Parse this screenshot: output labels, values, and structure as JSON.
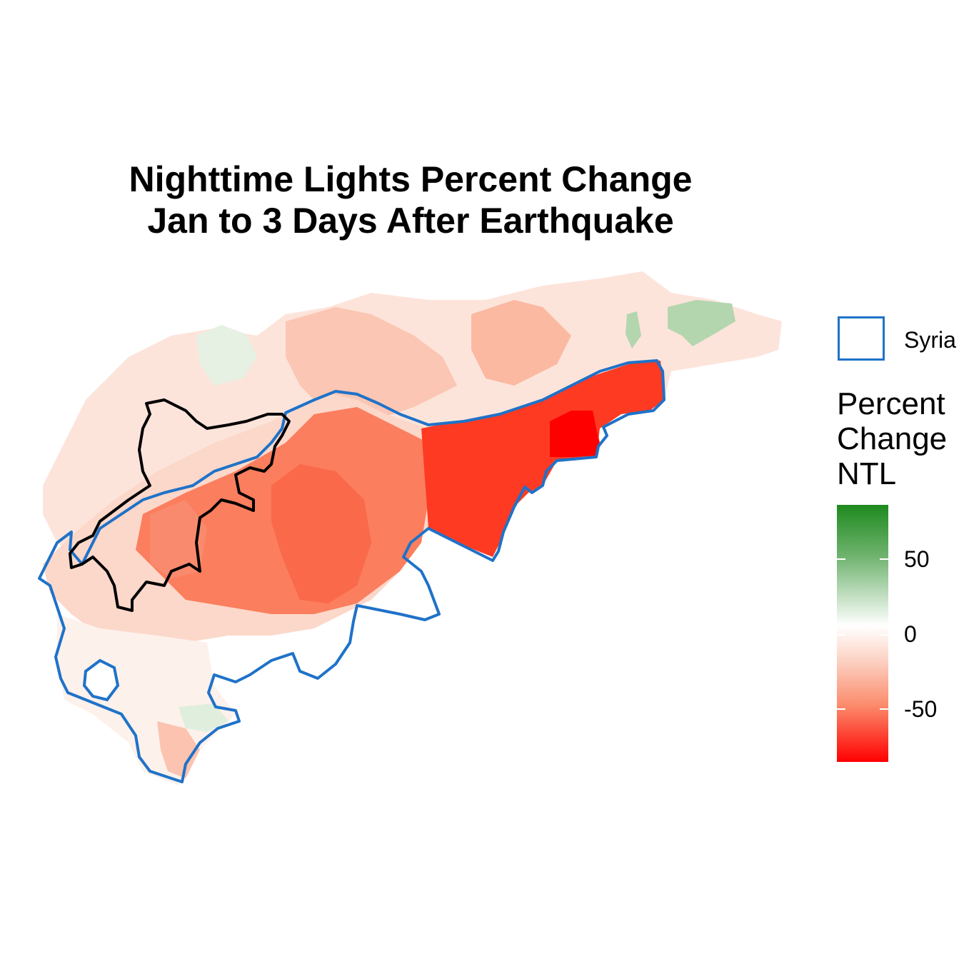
{
  "title": {
    "line1": "Nighttime Lights Percent Change",
    "line2": "Jan to 3 Days After Earthquake"
  },
  "legend": {
    "boundary_label": "Syria",
    "boundary_color": "#1f72c8",
    "region_outline_color": "#000000",
    "colorbar_title": [
      "Percent",
      "Change",
      "NTL"
    ],
    "colorbar_ticks": [
      "50",
      "0",
      "-50"
    ],
    "colorbar_colors": {
      "high": "#1e8a1e",
      "mid": "#ffffff",
      "low": "#ff0000"
    }
  }
}
